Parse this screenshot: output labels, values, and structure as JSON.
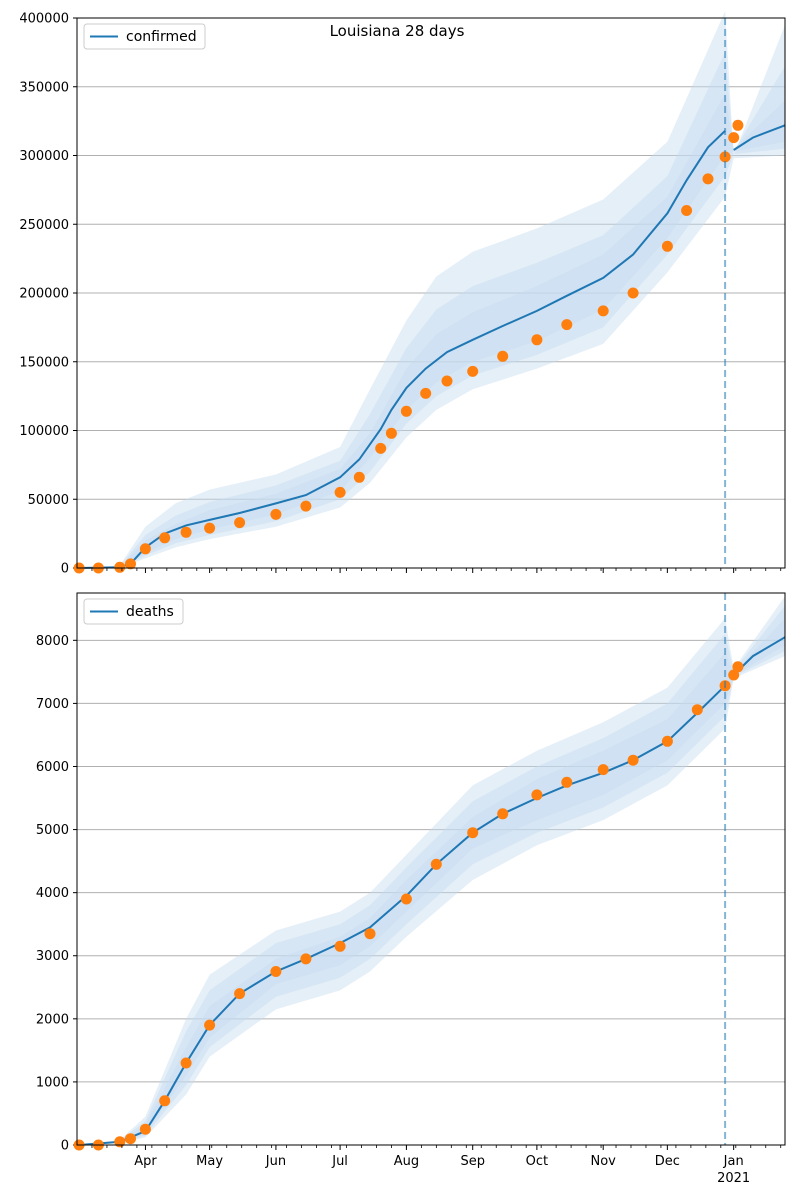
{
  "figure": {
    "title": "Louisiana 28 days"
  },
  "chart_data": [
    {
      "type": "line",
      "title": "Louisiana 28 days",
      "legend": {
        "label": "confirmed",
        "position": "top-left"
      },
      "ylim": [
        0,
        400000
      ],
      "yticks": [
        0,
        50000,
        100000,
        150000,
        200000,
        250000,
        300000,
        350000,
        400000
      ],
      "xlim": [
        "2020-02-29",
        "2021-01-25"
      ],
      "xticks": [
        {
          "date": "2020-04-01",
          "label": "Apr"
        },
        {
          "date": "2020-05-01",
          "label": "May"
        },
        {
          "date": "2020-06-01",
          "label": "Jun"
        },
        {
          "date": "2020-07-01",
          "label": "Jul"
        },
        {
          "date": "2020-08-01",
          "label": "Aug"
        },
        {
          "date": "2020-09-01",
          "label": "Sep"
        },
        {
          "date": "2020-10-01",
          "label": "Oct"
        },
        {
          "date": "2020-11-01",
          "label": "Nov"
        },
        {
          "date": "2020-12-01",
          "label": "Dec"
        },
        {
          "date": "2021-01-01",
          "label": "Jan",
          "sublabel": "2021"
        }
      ],
      "grid": "horizontal",
      "forecast_start": "2020-12-28",
      "model_line": {
        "x": [
          "2020-03-01",
          "2020-03-20",
          "2020-03-25",
          "2020-04-01",
          "2020-04-10",
          "2020-04-20",
          "2020-05-01",
          "2020-05-15",
          "2020-06-01",
          "2020-06-15",
          "2020-07-01",
          "2020-07-10",
          "2020-07-20",
          "2020-07-25",
          "2020-08-01",
          "2020-08-10",
          "2020-08-20",
          "2020-09-01",
          "2020-09-15",
          "2020-10-01",
          "2020-10-15",
          "2020-11-01",
          "2020-11-15",
          "2020-12-01",
          "2020-12-10",
          "2020-12-20",
          "2020-12-28",
          "2021-01-01",
          "2021-01-10",
          "2021-01-25"
        ],
        "y": [
          0,
          500,
          3000,
          15000,
          25000,
          31000,
          35000,
          40000,
          47000,
          53000,
          66000,
          79000,
          101000,
          115000,
          131000,
          145000,
          157000,
          166000,
          176000,
          187000,
          198000,
          211000,
          228000,
          258000,
          282000,
          306000,
          318000,
          304000,
          313000,
          322000
        ]
      },
      "bands": [
        {
          "x": [
            "2020-03-20",
            "2020-04-01",
            "2020-04-15",
            "2020-05-01",
            "2020-06-01",
            "2020-07-01",
            "2020-07-15",
            "2020-08-01",
            "2020-08-15",
            "2020-09-01",
            "2020-10-01",
            "2020-11-01",
            "2020-12-01",
            "2020-12-28",
            "2021-01-01",
            "2021-01-25"
          ],
          "lower": [
            0,
            7000,
            15000,
            21000,
            30000,
            44000,
            62000,
            95000,
            115000,
            130000,
            145000,
            163000,
            215000,
            270000,
            298000,
            300000
          ],
          "upper": [
            2000,
            30000,
            47000,
            57000,
            68000,
            88000,
            130000,
            180000,
            212000,
            230000,
            247000,
            268000,
            310000,
            405000,
            300000,
            395000
          ]
        },
        {
          "x": [
            "2020-03-20",
            "2020-04-01",
            "2020-04-15",
            "2020-05-01",
            "2020-06-01",
            "2020-07-01",
            "2020-07-15",
            "2020-08-01",
            "2020-08-15",
            "2020-09-01",
            "2020-10-01",
            "2020-11-01",
            "2020-12-01",
            "2020-12-28",
            "2021-01-01",
            "2021-01-25"
          ],
          "lower": [
            0,
            9000,
            18000,
            24000,
            34000,
            50000,
            70000,
            105000,
            125000,
            140000,
            155000,
            175000,
            228000,
            285000,
            301000,
            305000
          ],
          "upper": [
            1500,
            24000,
            38000,
            48000,
            60000,
            78000,
            112000,
            160000,
            188000,
            205000,
            222000,
            242000,
            285000,
            375000,
            303000,
            365000
          ]
        },
        {
          "x": [
            "2020-03-20",
            "2020-04-01",
            "2020-04-15",
            "2020-05-01",
            "2020-06-01",
            "2020-07-01",
            "2020-07-15",
            "2020-08-01",
            "2020-08-15",
            "2020-09-01",
            "2020-10-01",
            "2020-11-01",
            "2020-12-01",
            "2020-12-28",
            "2021-01-01",
            "2021-01-25"
          ],
          "lower": [
            200,
            11000,
            21000,
            28000,
            39000,
            56000,
            80000,
            115000,
            135000,
            150000,
            165000,
            188000,
            240000,
            300000,
            303000,
            310000
          ],
          "upper": [
            1000,
            20000,
            32000,
            42000,
            54000,
            72000,
            98000,
            145000,
            170000,
            186000,
            205000,
            228000,
            270000,
            345000,
            305000,
            340000
          ]
        }
      ],
      "observed": {
        "x": [
          "2020-03-01",
          "2020-03-10",
          "2020-03-20",
          "2020-03-25",
          "2020-04-01",
          "2020-04-10",
          "2020-04-20",
          "2020-05-01",
          "2020-05-15",
          "2020-06-01",
          "2020-06-15",
          "2020-07-01",
          "2020-07-10",
          "2020-07-20",
          "2020-07-25",
          "2020-08-01",
          "2020-08-10",
          "2020-08-20",
          "2020-09-01",
          "2020-09-15",
          "2020-10-01",
          "2020-10-15",
          "2020-11-01",
          "2020-11-15",
          "2020-12-01",
          "2020-12-10",
          "2020-12-20",
          "2020-12-28",
          "2021-01-01",
          "2021-01-03"
        ],
        "y": [
          0,
          0,
          500,
          3000,
          14000,
          22000,
          26000,
          29000,
          33000,
          39000,
          45000,
          55000,
          66000,
          87000,
          98000,
          114000,
          127000,
          136000,
          143000,
          154000,
          166000,
          177000,
          187000,
          200000,
          234000,
          260000,
          283000,
          299000,
          313000,
          322000
        ]
      }
    },
    {
      "type": "line",
      "legend": {
        "label": "deaths",
        "position": "top-left"
      },
      "ylim": [
        0,
        8750
      ],
      "yticks": [
        0,
        1000,
        2000,
        3000,
        4000,
        5000,
        6000,
        7000,
        8000
      ],
      "xlim": [
        "2020-02-29",
        "2021-01-25"
      ],
      "xticks": [
        {
          "date": "2020-04-01",
          "label": "Apr"
        },
        {
          "date": "2020-05-01",
          "label": "May"
        },
        {
          "date": "2020-06-01",
          "label": "Jun"
        },
        {
          "date": "2020-07-01",
          "label": "Jul"
        },
        {
          "date": "2020-08-01",
          "label": "Aug"
        },
        {
          "date": "2020-09-01",
          "label": "Sep"
        },
        {
          "date": "2020-10-01",
          "label": "Oct"
        },
        {
          "date": "2020-11-01",
          "label": "Nov"
        },
        {
          "date": "2020-12-01",
          "label": "Dec"
        },
        {
          "date": "2021-01-01",
          "label": "Jan",
          "sublabel": "2021"
        }
      ],
      "grid": "horizontal",
      "forecast_start": "2020-12-28",
      "model_line": {
        "x": [
          "2020-03-01",
          "2020-03-20",
          "2020-04-01",
          "2020-04-10",
          "2020-04-20",
          "2020-05-01",
          "2020-05-15",
          "2020-06-01",
          "2020-06-15",
          "2020-07-01",
          "2020-07-15",
          "2020-08-01",
          "2020-08-15",
          "2020-09-01",
          "2020-09-15",
          "2020-10-01",
          "2020-10-15",
          "2020-11-01",
          "2020-11-15",
          "2020-12-01",
          "2020-12-15",
          "2020-12-28",
          "2021-01-01",
          "2021-01-10",
          "2021-01-25"
        ],
        "y": [
          0,
          50,
          220,
          700,
          1300,
          1900,
          2400,
          2750,
          2950,
          3200,
          3450,
          3950,
          4450,
          4950,
          5250,
          5500,
          5700,
          5900,
          6100,
          6400,
          6850,
          7280,
          7450,
          7750,
          8050
        ]
      },
      "bands": [
        {
          "x": [
            "2020-03-20",
            "2020-04-01",
            "2020-04-20",
            "2020-05-01",
            "2020-06-01",
            "2020-07-01",
            "2020-07-15",
            "2020-08-01",
            "2020-09-01",
            "2020-10-01",
            "2020-11-01",
            "2020-12-01",
            "2020-12-28",
            "2021-01-01",
            "2021-01-25"
          ],
          "lower": [
            20,
            120,
            800,
            1400,
            2150,
            2450,
            2750,
            3300,
            4200,
            4750,
            5150,
            5700,
            6600,
            7400,
            7750
          ],
          "upper": [
            80,
            450,
            2000,
            2700,
            3400,
            3700,
            4000,
            4600,
            5700,
            6250,
            6700,
            7250,
            8350,
            7550,
            8700
          ]
        },
        {
          "x": [
            "2020-03-20",
            "2020-04-01",
            "2020-04-20",
            "2020-05-01",
            "2020-06-01",
            "2020-07-01",
            "2020-07-15",
            "2020-08-01",
            "2020-09-01",
            "2020-10-01",
            "2020-11-01",
            "2020-12-01",
            "2020-12-28",
            "2021-01-01",
            "2021-01-25"
          ],
          "lower": [
            30,
            150,
            950,
            1550,
            2350,
            2650,
            2950,
            3500,
            4450,
            4950,
            5350,
            5900,
            6800,
            7420,
            7830
          ],
          "upper": [
            70,
            380,
            1800,
            2450,
            3200,
            3500,
            3800,
            4400,
            5450,
            6000,
            6450,
            7000,
            8100,
            7520,
            8550
          ]
        },
        {
          "x": [
            "2020-03-20",
            "2020-04-01",
            "2020-04-20",
            "2020-05-01",
            "2020-06-01",
            "2020-07-01",
            "2020-07-15",
            "2020-08-01",
            "2020-09-01",
            "2020-10-01",
            "2020-11-01",
            "2020-12-01",
            "2020-12-28",
            "2021-01-01",
            "2021-01-25"
          ],
          "lower": [
            40,
            180,
            1100,
            1700,
            2550,
            2850,
            3150,
            3700,
            4700,
            5150,
            5550,
            6100,
            7000,
            7440,
            7920
          ],
          "upper": [
            60,
            320,
            1550,
            2200,
            2950,
            3300,
            3600,
            4200,
            5200,
            5800,
            6250,
            6750,
            7800,
            7480,
            8350
          ]
        }
      ],
      "observed": {
        "x": [
          "2020-03-01",
          "2020-03-10",
          "2020-03-20",
          "2020-03-25",
          "2020-04-01",
          "2020-04-10",
          "2020-04-20",
          "2020-05-01",
          "2020-05-15",
          "2020-06-01",
          "2020-06-15",
          "2020-07-01",
          "2020-07-15",
          "2020-08-01",
          "2020-08-15",
          "2020-09-01",
          "2020-09-15",
          "2020-10-01",
          "2020-10-15",
          "2020-11-01",
          "2020-11-15",
          "2020-12-01",
          "2020-12-15",
          "2020-12-28",
          "2021-01-01",
          "2021-01-03"
        ],
        "y": [
          0,
          0,
          50,
          100,
          250,
          700,
          1300,
          1900,
          2400,
          2750,
          2950,
          3150,
          3350,
          3900,
          4450,
          4950,
          5250,
          5550,
          5750,
          5950,
          6100,
          6400,
          6900,
          7280,
          7450,
          7580
        ]
      }
    }
  ]
}
